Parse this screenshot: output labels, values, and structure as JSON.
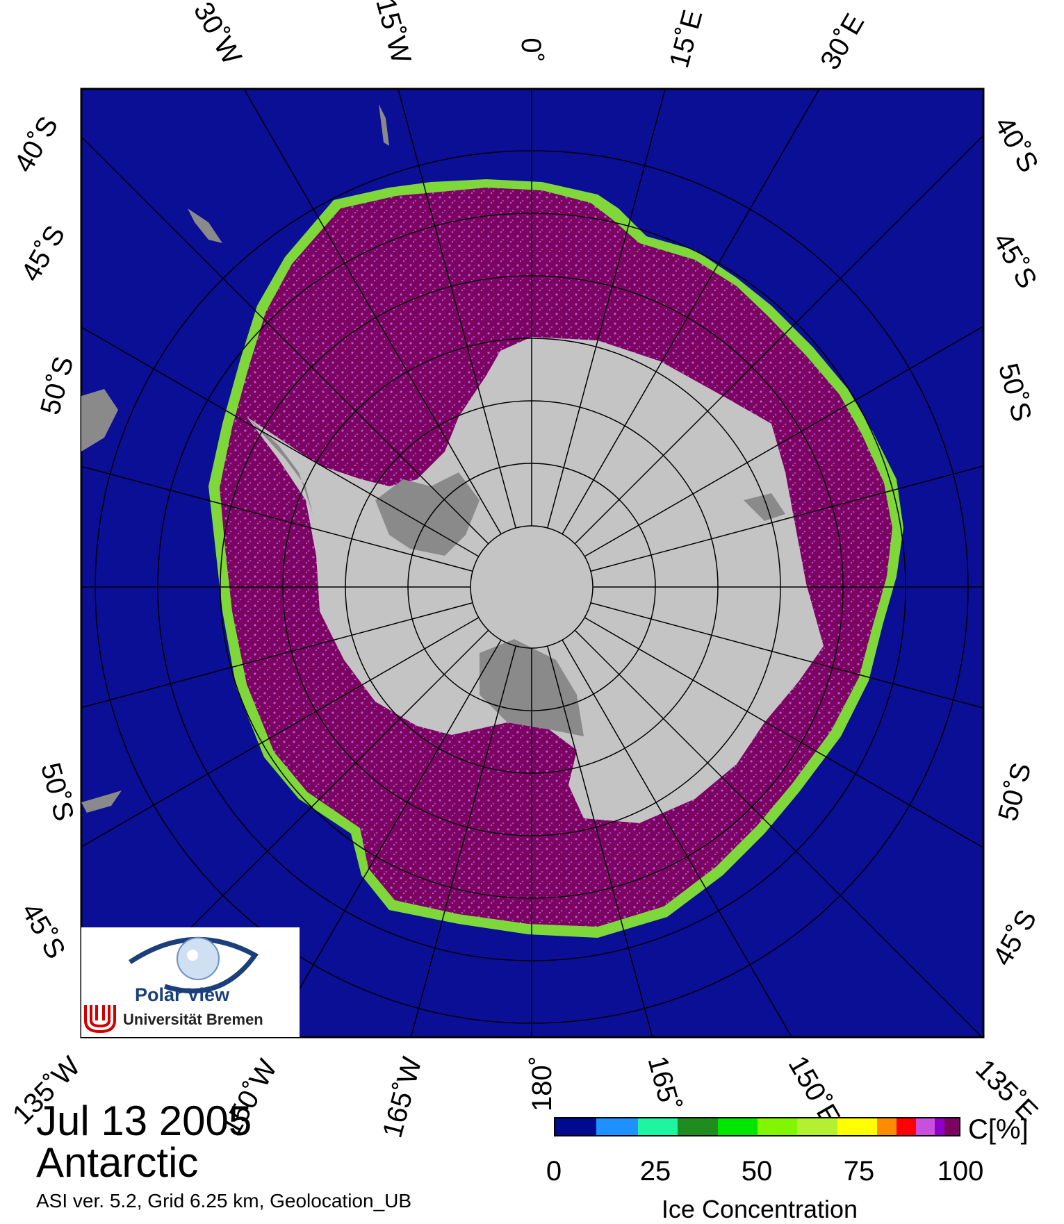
{
  "map": {
    "region": "Antarctic",
    "date": "Jul 13 2005",
    "metadata_line": "ASI ver. 5.2,  Grid 6.25 km, Geolocation_UB",
    "projection": "polar stereographic (south)",
    "colors": {
      "ocean": "#0a0f96",
      "land": "#c4c4c4",
      "ice_shelf": "#8a8a8a",
      "ice_high": "#7d0363",
      "grid": "#000000"
    }
  },
  "top_labels": [
    "30˚W",
    "15˚W",
    "0˚",
    "15˚E",
    "30˚E"
  ],
  "bottom_labels": [
    "135˚W",
    "150˚W",
    "165˚W",
    "180˚",
    "165˚",
    "150˚E",
    "135˚E"
  ],
  "left_labels": [
    "40˚S",
    "45˚S",
    "50˚S",
    "50˚S",
    "45˚S"
  ],
  "right_labels": [
    "40˚S",
    "45˚S",
    "50˚S",
    "50˚S",
    "45˚S"
  ],
  "logo": {
    "title": "Polar View",
    "subtitle": "Universität Bremen"
  },
  "colorbar": {
    "title": "Ice Concentration",
    "unit": "C[%]",
    "ticks": [
      "0",
      "25",
      "50",
      "75",
      "100"
    ],
    "colors": [
      "#000a8c",
      "#1e90ff",
      "#1ef5a0",
      "#1e8c1e",
      "#00e600",
      "#82f500",
      "#b4f032",
      "#ffff00",
      "#ff8c00",
      "#ff0000",
      "#c850dc",
      "#8c00c8",
      "#7d0363"
    ]
  }
}
